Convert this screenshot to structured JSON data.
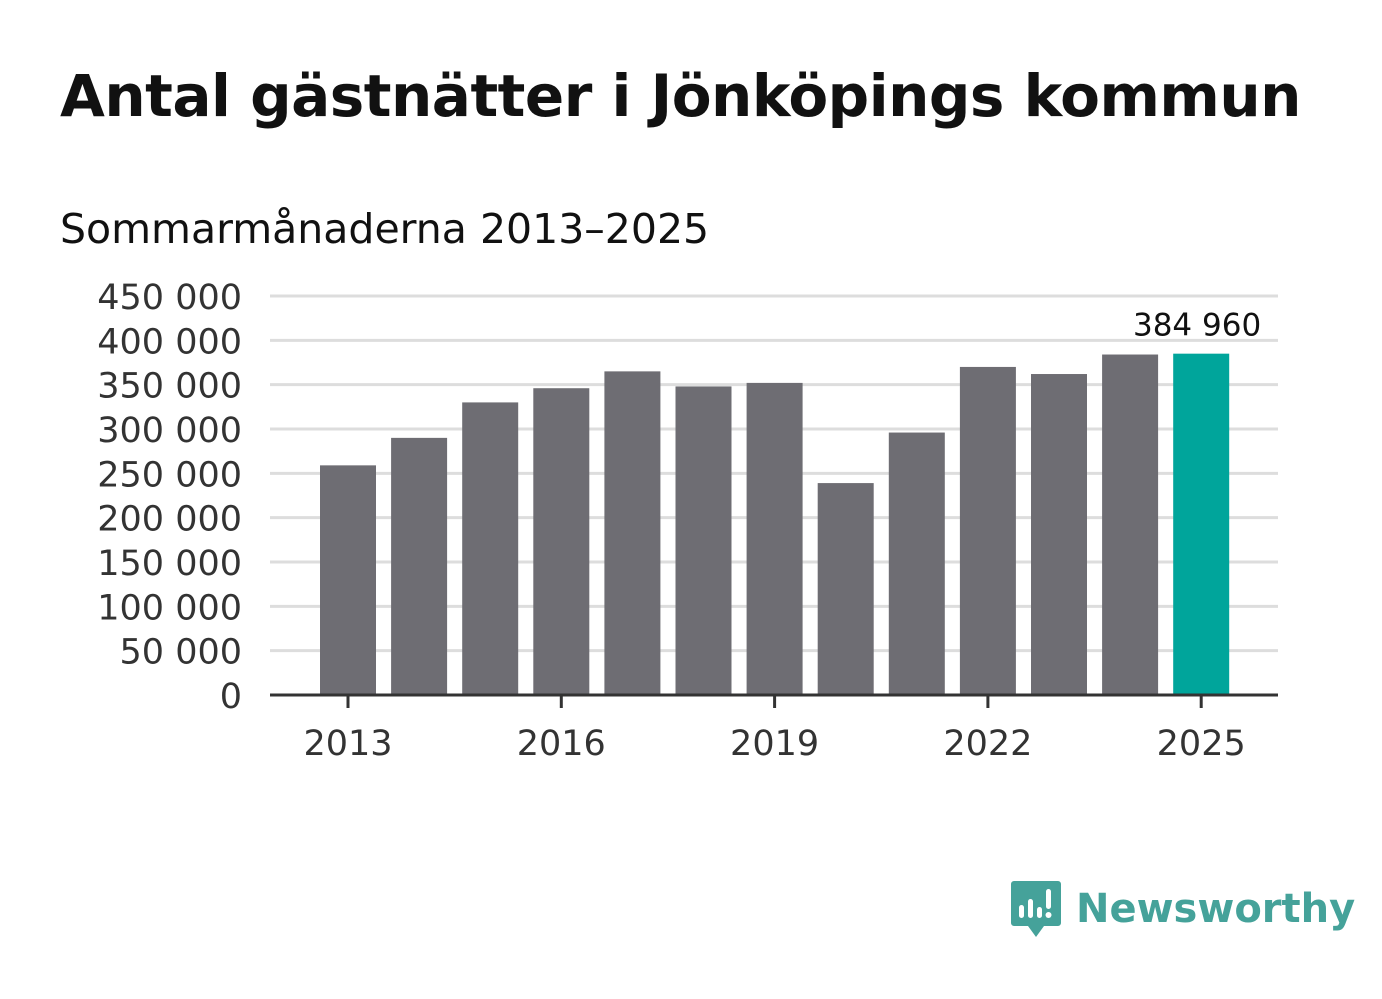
{
  "title": "Antal gästnätter i Jönköpings kommun",
  "subtitle": "Sommarmånaderna 2013–2025",
  "brand": {
    "name": "Newsworthy",
    "icon": "newsworthy-chart-bubble-icon"
  },
  "colors": {
    "bar": "#6e6d73",
    "highlight": "#00a59b",
    "grid": "#dddddd",
    "axis": "#333333",
    "brand": "#45a29a"
  },
  "chart_data": {
    "type": "bar",
    "categories": [
      "2013",
      "2014",
      "2015",
      "2016",
      "2017",
      "2018",
      "2019",
      "2020",
      "2021",
      "2022",
      "2023",
      "2024",
      "2025"
    ],
    "values": [
      259000,
      290000,
      330000,
      346000,
      365000,
      348000,
      352000,
      239000,
      296000,
      370000,
      362000,
      384000,
      384960
    ],
    "highlight_index": 12,
    "annotation": {
      "index": 12,
      "text": "384 960"
    },
    "xtick_labels": [
      "2013",
      "2016",
      "2019",
      "2022",
      "2025"
    ],
    "yticks": [
      0,
      50000,
      100000,
      150000,
      200000,
      250000,
      300000,
      350000,
      400000,
      450000
    ],
    "ytick_labels": [
      "0",
      "50 000",
      "100 000",
      "150 000",
      "200 000",
      "250 000",
      "300 000",
      "350 000",
      "400 000",
      "450 000"
    ],
    "ylim": [
      0,
      450000
    ],
    "grid": true
  }
}
